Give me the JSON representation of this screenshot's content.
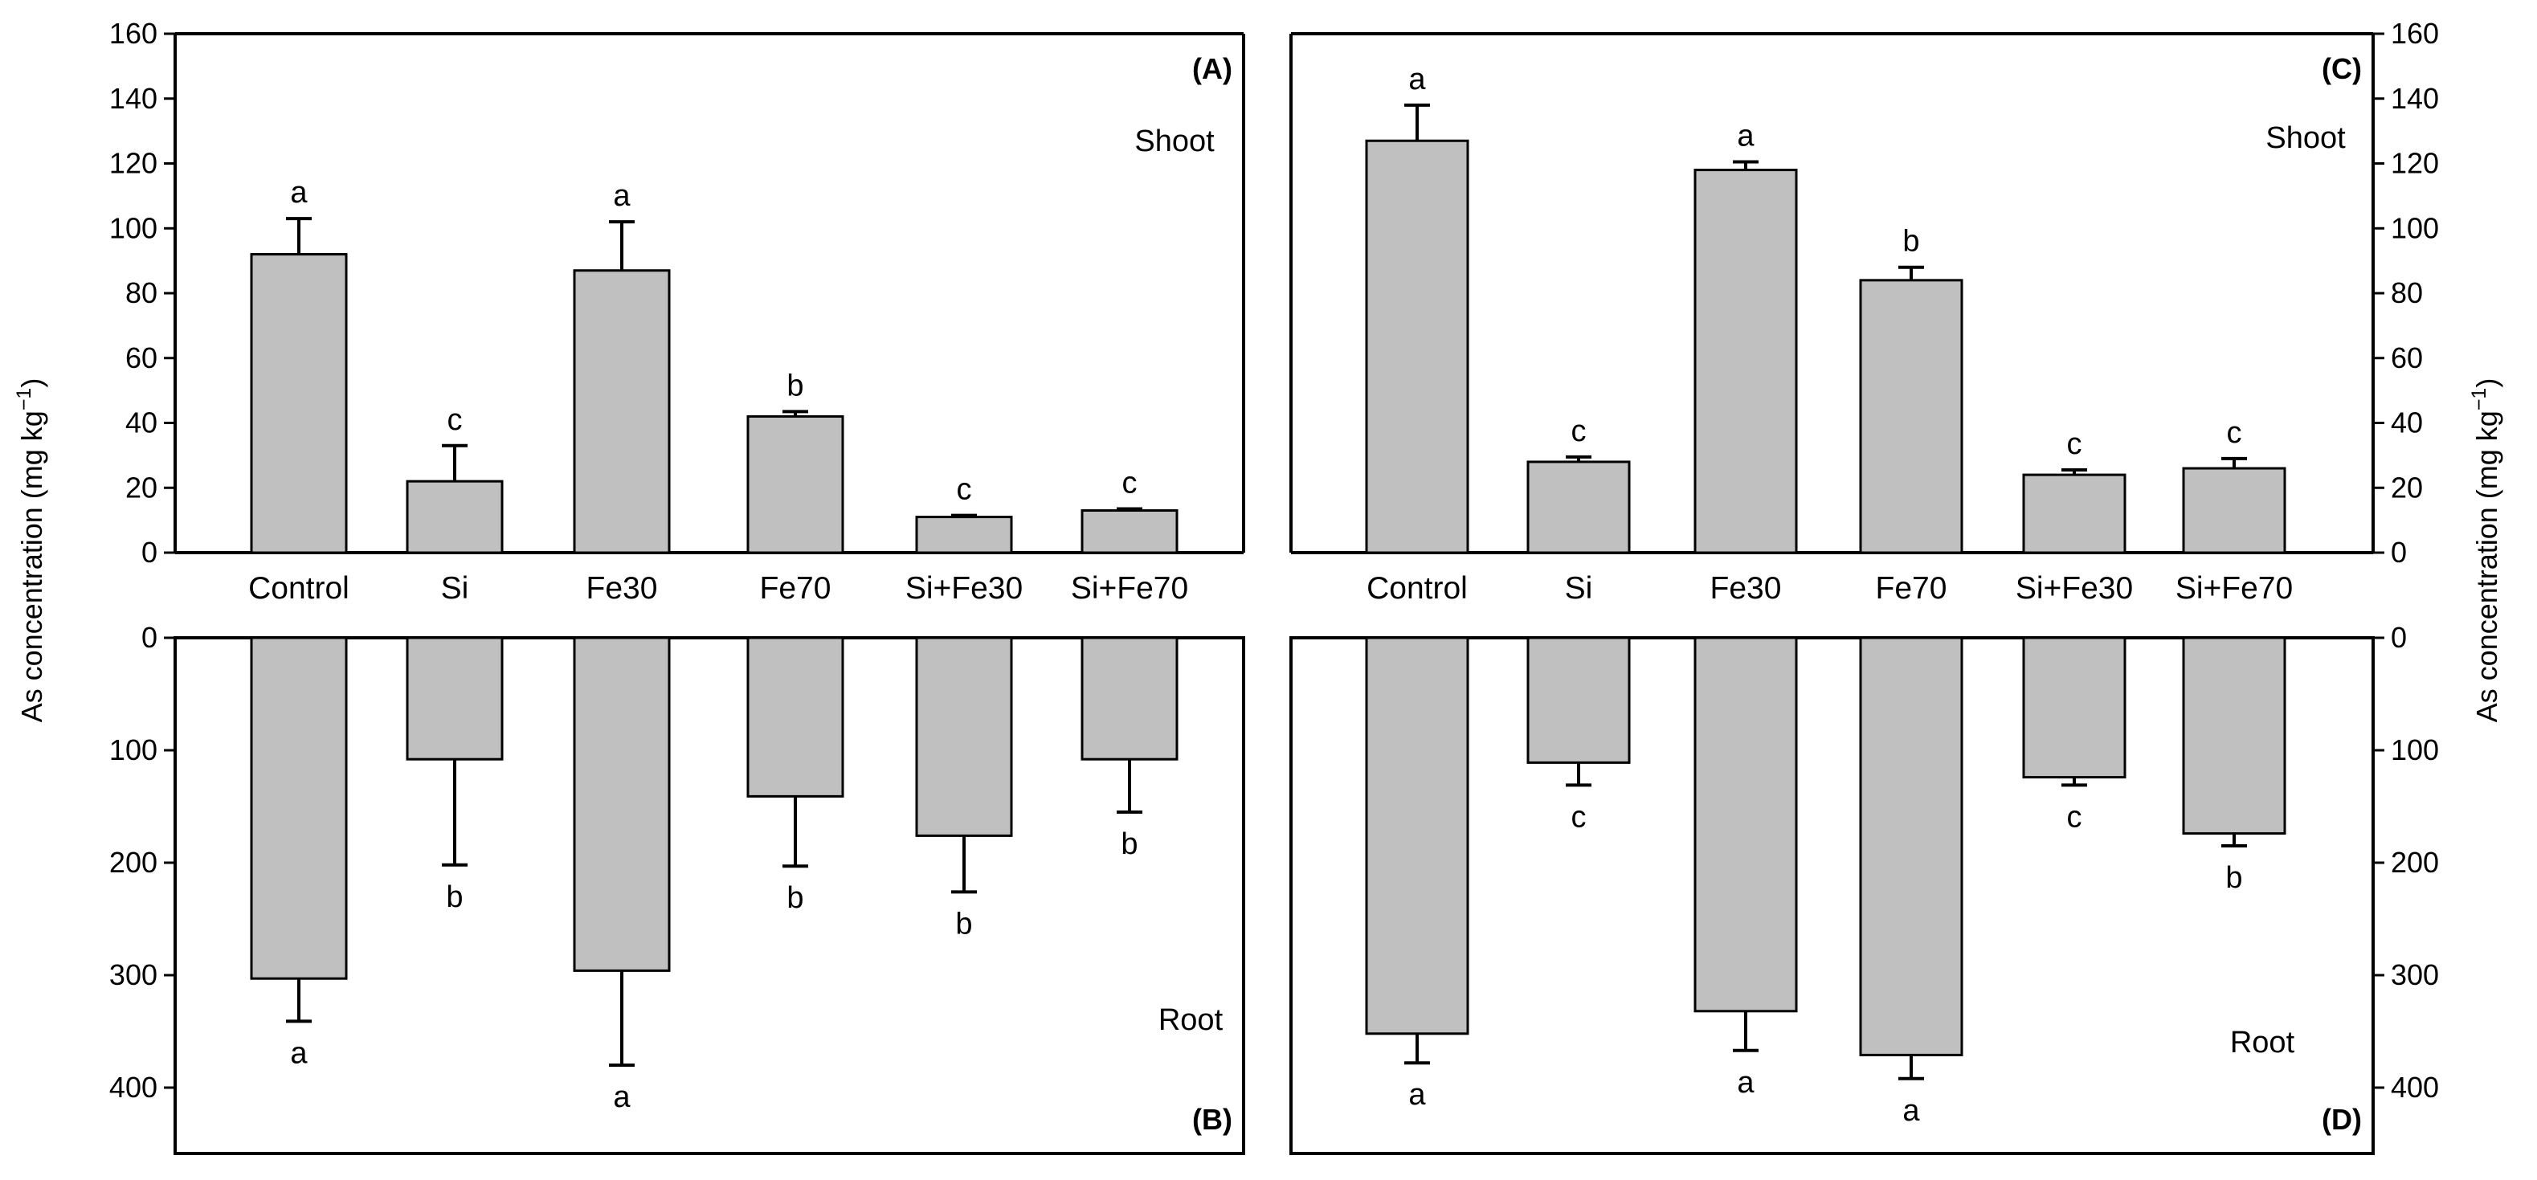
{
  "y_axis_label": "As concentration (mg kg",
  "y_axis_label_sup": "−1",
  "y_axis_label_end": ")",
  "chart_data": [
    {
      "panel": "A",
      "tissue": "Shoot",
      "type": "bar",
      "categories": [
        "Control",
        "Si",
        "Fe30",
        "Fe70",
        "Si+Fe30",
        "Si+Fe70"
      ],
      "values": [
        92,
        22,
        87,
        42,
        11,
        13
      ],
      "errors": [
        11,
        11,
        15,
        1.5,
        0.5,
        0.5
      ],
      "significance": [
        "a",
        "c",
        "a",
        "b",
        "c",
        "c"
      ],
      "ylim": [
        0,
        160
      ],
      "yticks": [
        "0",
        "20",
        "40",
        "60",
        "80",
        "100",
        "120",
        "140",
        "160"
      ],
      "y_axis_side": "left"
    },
    {
      "panel": "B",
      "tissue": "Root",
      "type": "bar",
      "categories": [
        "Control",
        "Si",
        "Fe30",
        "Fe70",
        "Si+Fe30",
        "Si+Fe70"
      ],
      "values": [
        303,
        108,
        296,
        141,
        176,
        108
      ],
      "errors": [
        38,
        94,
        84,
        62,
        50,
        47
      ],
      "significance": [
        "a",
        "b",
        "a",
        "b",
        "b",
        "b"
      ],
      "ylim": [
        0,
        450
      ],
      "yticks": [
        "0",
        "100",
        "200",
        "300",
        "400"
      ],
      "y_axis_side": "left",
      "inverted": true
    },
    {
      "panel": "C",
      "tissue": "Shoot",
      "type": "bar",
      "categories": [
        "Control",
        "Si",
        "Fe30",
        "Fe70",
        "Si+Fe30",
        "Si+Fe70"
      ],
      "values": [
        127,
        28,
        118,
        84,
        24,
        26
      ],
      "errors": [
        11,
        1.5,
        2.5,
        4,
        1.5,
        3
      ],
      "significance": [
        "a",
        "c",
        "a",
        "b",
        "c",
        "c"
      ],
      "ylim": [
        0,
        160
      ],
      "yticks": [
        "0",
        "20",
        "40",
        "60",
        "80",
        "100",
        "120",
        "140",
        "160"
      ],
      "y_axis_side": "right"
    },
    {
      "panel": "D",
      "tissue": "Root",
      "type": "bar",
      "categories": [
        "Control",
        "Si",
        "Fe30",
        "Fe70",
        "Si+Fe30",
        "Si+Fe70"
      ],
      "values": [
        352,
        111,
        332,
        371,
        124,
        174
      ],
      "errors": [
        26,
        20,
        35,
        21,
        7,
        11
      ],
      "significance": [
        "a",
        "c",
        "a",
        "a",
        "c",
        "b"
      ],
      "ylim": [
        0,
        450
      ],
      "yticks": [
        "0",
        "100",
        "200",
        "300",
        "400"
      ],
      "y_axis_side": "right",
      "inverted": true
    }
  ]
}
